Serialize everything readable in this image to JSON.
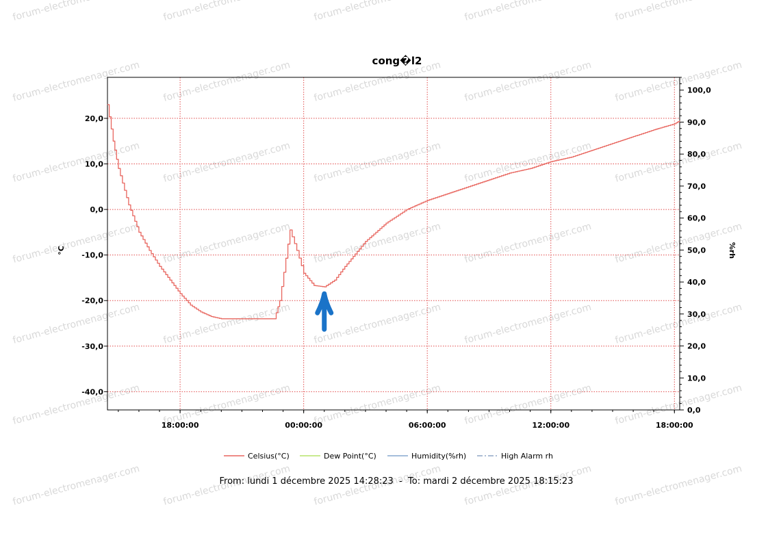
{
  "watermark": {
    "text": "forum-electromenager.com"
  },
  "colors": {
    "celsius": "#e8655e",
    "dew_point": "#b6e36a",
    "humidity": "#86a9cf",
    "high_alarm_rh": "#8fa6c6",
    "grid": "#e14a4a",
    "arrow": "#1a73c8"
  },
  "chart_data": {
    "type": "line",
    "title": "cong�l2",
    "xlabel": "",
    "ylabel": "°C",
    "y2label": "%rh",
    "xlim": [
      "2025-12-01 14:28:23",
      "2025-12-02 18:15:23"
    ],
    "ylim": [
      -44,
      29
    ],
    "y2lim": [
      0,
      104
    ],
    "x_ticks": [
      "18:00:00",
      "00:00:00",
      "06:00:00",
      "12:00:00",
      "18:00:00"
    ],
    "y_ticks": [
      "20,0",
      "10,0",
      "0,0",
      "-10,0",
      "-20,0",
      "-30,0",
      "-40,0"
    ],
    "y2_ticks": [
      "100,0",
      "90,0",
      "80,0",
      "70,0",
      "60,0",
      "50,0",
      "40,0",
      "30,0",
      "20,0",
      "10,0",
      "0,0"
    ],
    "grid": true,
    "legend_position": "bottom",
    "legend": [
      "Celsius(°C)",
      "Dew Point(°C)",
      "Humidity(%rh)",
      "High Alarm rh"
    ],
    "series": [
      {
        "name": "Celsius(°C)",
        "x": [
          "2025-12-01 14:28",
          "2025-12-01 14:45",
          "2025-12-01 15:00",
          "2025-12-01 15:30",
          "2025-12-01 16:00",
          "2025-12-01 16:30",
          "2025-12-01 17:00",
          "2025-12-01 17:30",
          "2025-12-01 18:00",
          "2025-12-01 18:30",
          "2025-12-01 19:00",
          "2025-12-01 19:30",
          "2025-12-01 20:00",
          "2025-12-01 20:30",
          "2025-12-01 21:00",
          "2025-12-01 21:30",
          "2025-12-01 22:00",
          "2025-12-01 22:30",
          "2025-12-01 22:35",
          "2025-12-01 22:50",
          "2025-12-01 23:20",
          "2025-12-01 23:40",
          "2025-12-02 00:00",
          "2025-12-02 00:30",
          "2025-12-02 01:00",
          "2025-12-02 01:30",
          "2025-12-02 02:00",
          "2025-12-02 03:00",
          "2025-12-02 04:00",
          "2025-12-02 05:00",
          "2025-12-02 06:00",
          "2025-12-02 07:00",
          "2025-12-02 08:00",
          "2025-12-02 09:00",
          "2025-12-02 10:00",
          "2025-12-02 11:00",
          "2025-12-02 12:00",
          "2025-12-02 13:00",
          "2025-12-02 14:00",
          "2025-12-02 15:00",
          "2025-12-02 16:00",
          "2025-12-02 17:00",
          "2025-12-02 18:00",
          "2025-12-02 18:15"
        ],
        "y": [
          23,
          15,
          9,
          1,
          -5,
          -9,
          -12.5,
          -15.5,
          -18.5,
          -21,
          -22.5,
          -23.5,
          -24,
          -24,
          -24,
          -24,
          -24,
          -24,
          -24,
          -20,
          -4.5,
          -9,
          -14,
          -16.7,
          -17,
          -15.5,
          -12.5,
          -7,
          -3,
          0,
          2,
          3.5,
          5,
          6.5,
          8,
          9,
          10.5,
          11.5,
          13,
          14.5,
          16,
          17.5,
          18.8,
          19.5
        ]
      }
    ],
    "annotations": [
      {
        "type": "arrow",
        "points_to": {
          "x": "2025-12-02 01:00",
          "y": -17
        }
      }
    ]
  },
  "footer": {
    "text": "From: lundi 1 décembre 2025 14:28:23  -  To: mardi 2 décembre 2025 18:15:23"
  }
}
